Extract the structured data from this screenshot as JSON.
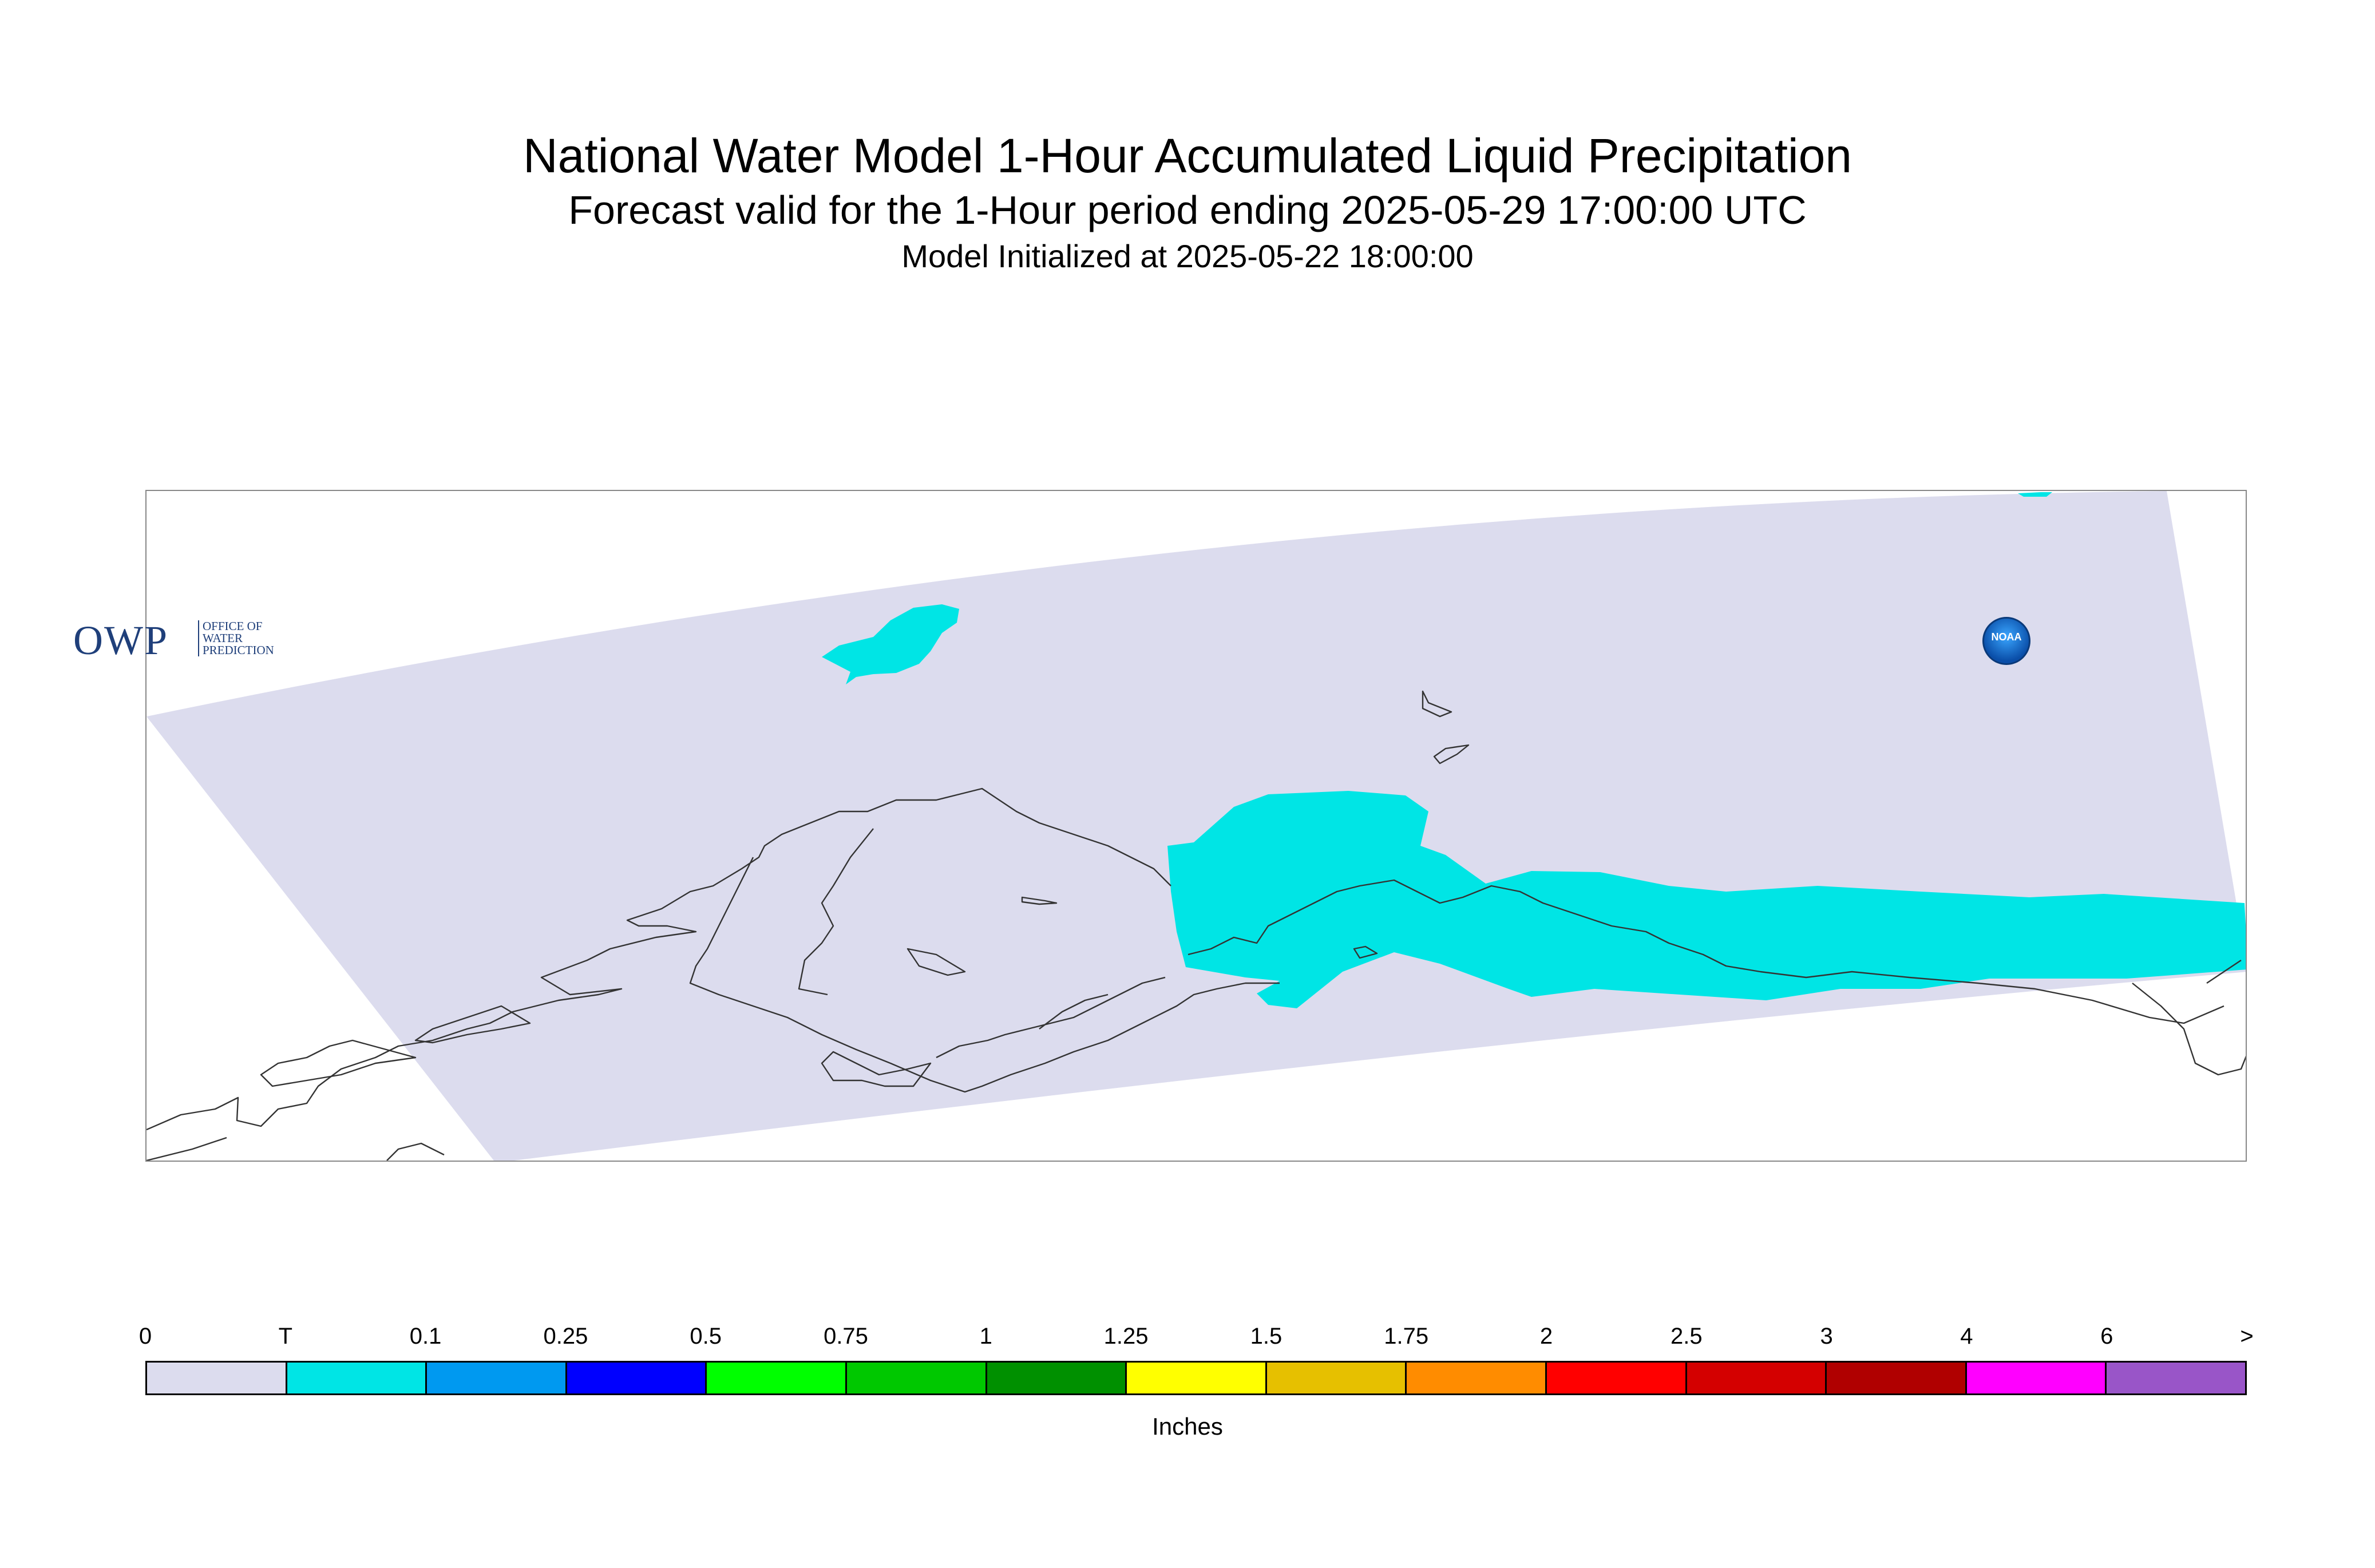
{
  "title": "National Water Model 1-Hour Accumulated Liquid Precipitation",
  "subtitle": "Forecast valid for the 1-Hour period ending 2025-05-29 17:00:00 UTC",
  "init_line": "Model Initialized at 2025-05-22 18:00:00",
  "logo": {
    "owp_main": "OWP",
    "owp_sub": "OFFICE OF\nWATER\nPREDICTION",
    "noaa_label": "NOAA"
  },
  "colors": {
    "domain_fill": "#dcdcee",
    "precip_trace": "#00e5e5",
    "coastline": "#333333"
  },
  "legend": {
    "units": "Inches",
    "labels": [
      "0",
      "T",
      "0.1",
      "0.25",
      "0.5",
      "0.75",
      "1",
      "1.25",
      "1.5",
      "1.75",
      "2",
      "2.5",
      "3",
      "4",
      "6",
      ">"
    ],
    "colors": [
      "#dcdcee",
      "#00e5e5",
      "#0099f0",
      "#0000ff",
      "#00ff00",
      "#00c800",
      "#009000",
      "#ffff00",
      "#e6c000",
      "#ff8c00",
      "#ff0000",
      "#d40000",
      "#b00000",
      "#ff00ff",
      "#9955c8"
    ]
  }
}
